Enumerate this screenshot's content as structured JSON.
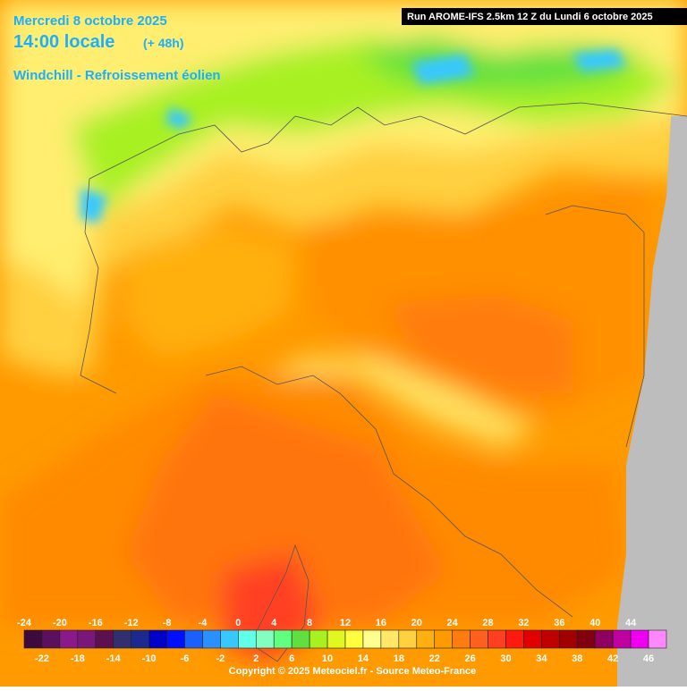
{
  "header": {
    "date": "Mercredi 8 octobre 2025",
    "time": "14:00 locale",
    "lead": "(+ 48h)",
    "parameter": "Windchill - Refroissement éolien",
    "run": "Run AROME-IFS 2.5km 12 Z du Lundi 6 octobre 2025"
  },
  "colorbar": {
    "values": [
      -24,
      -22,
      -20,
      -18,
      -16,
      -14,
      -12,
      -10,
      -8,
      -6,
      -4,
      -2,
      0,
      2,
      4,
      6,
      8,
      10,
      12,
      14,
      16,
      18,
      20,
      22,
      24,
      26,
      28,
      30,
      32,
      34,
      36,
      38,
      40,
      42,
      44,
      46
    ],
    "colors": [
      "#3c0a3c",
      "#5c0f5c",
      "#8a1a8a",
      "#7a187a",
      "#5c1050",
      "#303070",
      "#1c2a90",
      "#0000c8",
      "#0010ff",
      "#1a60ff",
      "#2a90ff",
      "#38c8ff",
      "#60ffe8",
      "#80ffc0",
      "#60ff80",
      "#60e040",
      "#a8f020",
      "#e0f820",
      "#ffff40",
      "#ffff90",
      "#ffe868",
      "#ffd040",
      "#ffb010",
      "#ff9a00",
      "#ff7c10",
      "#ff6020",
      "#ff4020",
      "#ff1a10",
      "#e00000",
      "#c00000",
      "#a00000",
      "#800010",
      "#900060",
      "#c000a0",
      "#f000f0",
      "#ff88ff"
    ]
  },
  "footer": {
    "copyright": "Copyright © 2025 Meteociel.fr - Source Meteo-France"
  }
}
